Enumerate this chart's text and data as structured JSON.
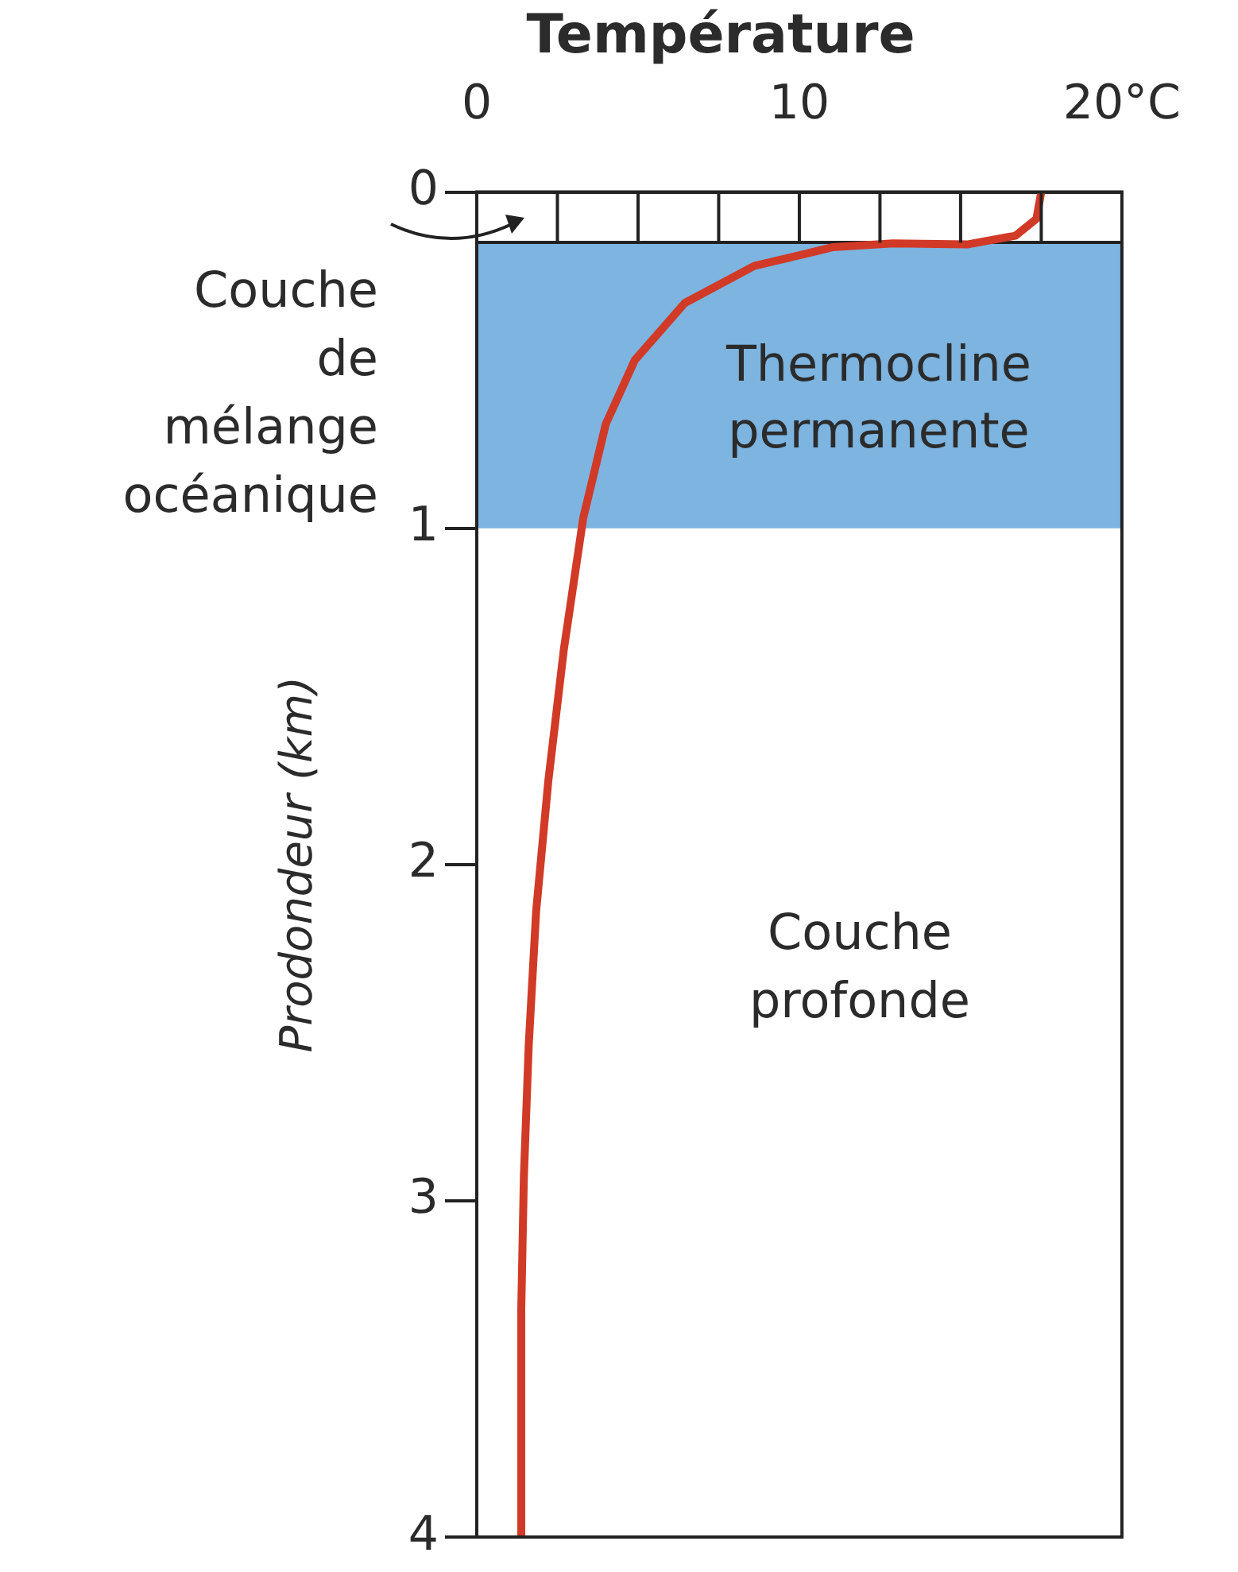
{
  "chart_data": {
    "type": "line",
    "title": "Température",
    "ylabel": "Prodondeur (km)",
    "x": [
      17.5,
      17.35,
      16.7,
      15.2,
      12.9,
      11.05,
      8.6,
      6.45,
      4.9,
      4.0,
      3.3,
      2.7,
      2.22,
      1.84,
      1.61,
      1.46,
      1.38,
      1.38
    ],
    "series": [
      {
        "color": "#d13a27",
        "values": [
          0,
          0.08,
          0.13,
          0.156,
          0.153,
          0.164,
          0.22,
          0.33,
          0.5,
          0.69,
          0.97,
          1.36,
          1.75,
          2.14,
          2.54,
          2.93,
          3.32,
          4
        ]
      }
    ],
    "xlim": [
      0,
      20
    ],
    "xticks": [
      0,
      10,
      {
        "value": 20,
        "label": "20°C"
      }
    ],
    "ylim": [
      4,
      0
    ],
    "yticks": [
      0,
      1,
      2,
      3,
      4
    ],
    "bands": [
      {
        "axis": "y",
        "from": 0.15,
        "to": 1,
        "label": "Thermocline permanente",
        "color": "#7db4e0"
      }
    ],
    "ref_lines": [
      {
        "axis": "y",
        "value": 0.15,
        "color": "#222222"
      }
    ],
    "annotations": [
      "Couche de mélange océanique",
      "Couche profonde"
    ],
    "grid": false,
    "legend": false,
    "marker": "none",
    "line_style": "solid"
  }
}
